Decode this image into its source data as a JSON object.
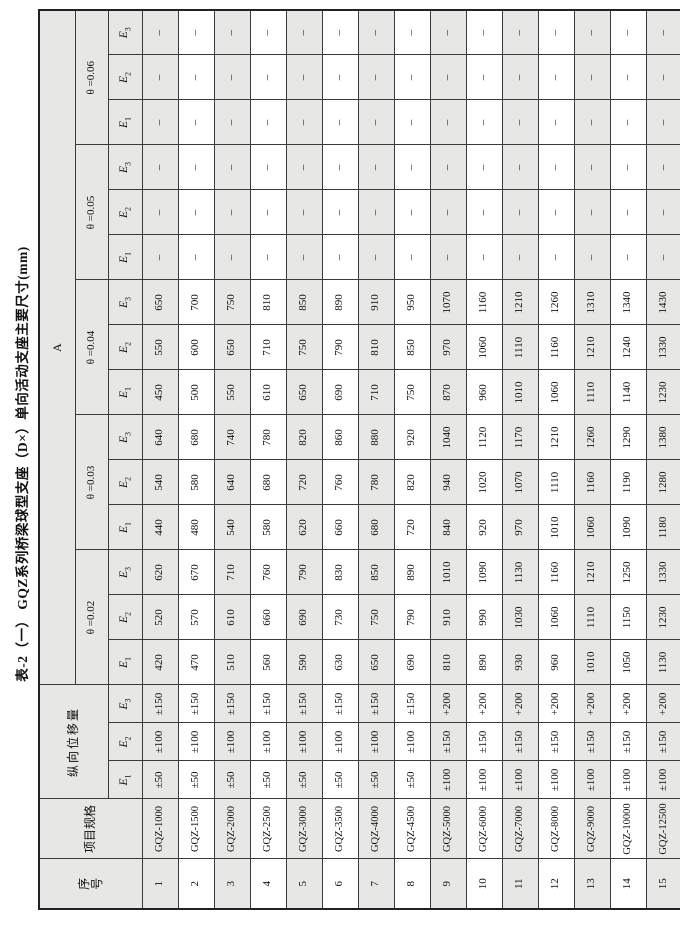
{
  "page": {
    "title": "表-2（一） GQZ系列桥梁球型支座（D×）单向活动支座主要尺寸(mm)"
  },
  "table": {
    "header": {
      "serial": "序\n号",
      "spec": "项目规格",
      "displacement": "纵向位移量",
      "a_group": "A",
      "theta_labels": [
        "θ =0.02",
        "θ =0.03",
        "θ =0.04",
        "θ =0.05",
        "θ =0.06"
      ],
      "e_labels": [
        {
          "base": "E",
          "sub": "1"
        },
        {
          "base": "E",
          "sub": "2"
        },
        {
          "base": "E",
          "sub": "3"
        }
      ]
    },
    "colors": {
      "shade": "#e7e7e5",
      "border": "#3a3a3a",
      "text": "#111111"
    },
    "empty_mark": "–",
    "rows": [
      {
        "serial": "1",
        "spec": "GQZ-1000",
        "cells": [
          "±50",
          "±100",
          "±150",
          "420",
          "520",
          "620",
          "440",
          "540",
          "640",
          "450",
          "550",
          "650",
          "–",
          "–",
          "–",
          "–",
          "–",
          "–"
        ]
      },
      {
        "serial": "2",
        "spec": "GQZ-1500",
        "cells": [
          "±50",
          "±100",
          "±150",
          "470",
          "570",
          "670",
          "480",
          "580",
          "680",
          "500",
          "600",
          "700",
          "–",
          "–",
          "–",
          "–",
          "–",
          "–"
        ]
      },
      {
        "serial": "3",
        "spec": "GQZ-2000",
        "cells": [
          "±50",
          "±100",
          "±150",
          "510",
          "610",
          "710",
          "540",
          "640",
          "740",
          "550",
          "650",
          "750",
          "–",
          "–",
          "–",
          "–",
          "–",
          "–"
        ]
      },
      {
        "serial": "4",
        "spec": "GQZ-2500",
        "cells": [
          "±50",
          "±100",
          "±150",
          "560",
          "660",
          "760",
          "580",
          "680",
          "780",
          "610",
          "710",
          "810",
          "–",
          "–",
          "–",
          "–",
          "–",
          "–"
        ]
      },
      {
        "serial": "5",
        "spec": "GQZ-3000",
        "cells": [
          "±50",
          "±100",
          "±150",
          "590",
          "690",
          "790",
          "620",
          "720",
          "820",
          "650",
          "750",
          "850",
          "–",
          "–",
          "–",
          "–",
          "–",
          "–"
        ]
      },
      {
        "serial": "6",
        "spec": "GQZ-3500",
        "cells": [
          "±50",
          "±100",
          "±150",
          "630",
          "730",
          "830",
          "660",
          "760",
          "860",
          "690",
          "790",
          "890",
          "–",
          "–",
          "–",
          "–",
          "–",
          "–"
        ]
      },
      {
        "serial": "7",
        "spec": "GQZ-4000",
        "cells": [
          "±50",
          "±100",
          "±150",
          "650",
          "750",
          "850",
          "680",
          "780",
          "880",
          "710",
          "810",
          "910",
          "–",
          "–",
          "–",
          "–",
          "–",
          "–"
        ]
      },
      {
        "serial": "8",
        "spec": "GQZ-4500",
        "cells": [
          "±50",
          "±100",
          "±150",
          "690",
          "790",
          "890",
          "720",
          "820",
          "920",
          "750",
          "850",
          "950",
          "–",
          "–",
          "–",
          "–",
          "–",
          "–"
        ]
      },
      {
        "serial": "9",
        "spec": "GQZ-5000",
        "cells": [
          "±100",
          "±150",
          "+200",
          "810",
          "910",
          "1010",
          "840",
          "940",
          "1040",
          "870",
          "970",
          "1070",
          "–",
          "–",
          "–",
          "–",
          "–",
          "–"
        ]
      },
      {
        "serial": "10",
        "spec": "GQZ-6000",
        "cells": [
          "±100",
          "±150",
          "+200",
          "890",
          "990",
          "1090",
          "920",
          "1020",
          "1120",
          "960",
          "1060",
          "1160",
          "–",
          "–",
          "–",
          "–",
          "–",
          "–"
        ]
      },
      {
        "serial": "11",
        "spec": "GQZ-7000",
        "cells": [
          "±100",
          "±150",
          "+200",
          "930",
          "1030",
          "1130",
          "970",
          "1070",
          "1170",
          "1010",
          "1110",
          "1210",
          "–",
          "–",
          "–",
          "–",
          "–",
          "–"
        ]
      },
      {
        "serial": "12",
        "spec": "GQZ-8000",
        "cells": [
          "±100",
          "±150",
          "+200",
          "960",
          "1060",
          "1160",
          "1010",
          "1110",
          "1210",
          "1060",
          "1160",
          "1260",
          "–",
          "–",
          "–",
          "–",
          "–",
          "–"
        ]
      },
      {
        "serial": "13",
        "spec": "GQZ-9000",
        "cells": [
          "±100",
          "±150",
          "+200",
          "1010",
          "1110",
          "1210",
          "1060",
          "1160",
          "1260",
          "1110",
          "1210",
          "1310",
          "–",
          "–",
          "–",
          "–",
          "–",
          "–"
        ]
      },
      {
        "serial": "14",
        "spec": "GQZ-10000",
        "cells": [
          "±100",
          "±150",
          "+200",
          "1050",
          "1150",
          "1250",
          "1090",
          "1190",
          "1290",
          "1140",
          "1240",
          "1340",
          "–",
          "–",
          "–",
          "–",
          "–",
          "–"
        ]
      },
      {
        "serial": "15",
        "spec": "GQZ-12500",
        "cells": [
          "±100",
          "±150",
          "+200",
          "1130",
          "1230",
          "1330",
          "1180",
          "1280",
          "1380",
          "1230",
          "1330",
          "1430",
          "–",
          "–",
          "–",
          "–",
          "–",
          "–"
        ]
      }
    ]
  }
}
